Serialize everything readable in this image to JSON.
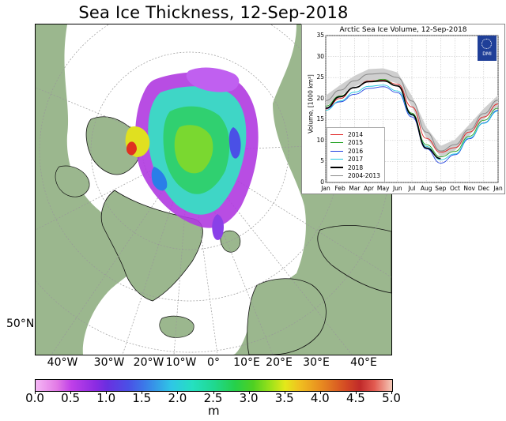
{
  "map": {
    "title": "Sea Ice Thickness, 12-Sep-2018",
    "latitude_label": "50°N",
    "longitude_labels": [
      "40°W",
      "30°W",
      "20°W",
      "10°W",
      "0°",
      "10°E",
      "20°E",
      "30°E",
      "40°E"
    ],
    "colors": {
      "land": "#9bb78e",
      "ocean": "#ffffff",
      "graticule": "#999999"
    }
  },
  "colorbar": {
    "ticks": [
      "0.0",
      "0.5",
      "1.0",
      "1.5",
      "2.0",
      "2.5",
      "3.0",
      "3.5",
      "4.0",
      "4.5",
      "5.0"
    ],
    "unit": "m",
    "range": [
      0.0,
      5.0
    ]
  },
  "inset": {
    "title": "Arctic Sea Ice Volume, 12-Sep-2018",
    "logo_text": "DMI",
    "icon": "dmi-logo-icon"
  },
  "chart_data": {
    "type": "line",
    "title": "Arctic Sea Ice Volume, 12-Sep-2018",
    "xlabel": "",
    "ylabel": "Volume, [1000 km³]",
    "x_ticks": [
      "Jan",
      "Feb",
      "Mar",
      "Apr",
      "May",
      "Jun",
      "Jul",
      "Aug",
      "Sep",
      "Oct",
      "Nov",
      "Dec",
      "Jan"
    ],
    "y_ticks": [
      "0",
      "5",
      "10",
      "15",
      "20",
      "25",
      "30",
      "35"
    ],
    "ylim": [
      0,
      35
    ],
    "legend_position": "lower-left",
    "series": [
      {
        "name": "2014",
        "color": "#e02020",
        "values": [
          17.5,
          20.0,
          22.6,
          24.2,
          24.4,
          23.4,
          18.0,
          10.5,
          7.2,
          8.3,
          12.0,
          15.6,
          18.7
        ]
      },
      {
        "name": "2015",
        "color": "#20a020",
        "values": [
          18.2,
          20.6,
          22.6,
          24.0,
          24.6,
          23.0,
          16.5,
          9.0,
          6.1,
          7.4,
          11.0,
          14.8,
          17.7
        ]
      },
      {
        "name": "2016",
        "color": "#2040e0",
        "values": [
          17.6,
          19.2,
          21.0,
          22.4,
          22.8,
          21.4,
          15.6,
          8.0,
          4.6,
          6.6,
          10.4,
          14.2,
          17.2
        ]
      },
      {
        "name": "2017",
        "color": "#20c8e0",
        "values": [
          17.2,
          19.4,
          21.5,
          22.9,
          23.2,
          21.8,
          16.0,
          8.6,
          5.4,
          6.8,
          10.6,
          14.1,
          17.0
        ]
      },
      {
        "name": "2018",
        "color": "#000000",
        "values": [
          17.7,
          20.4,
          22.6,
          24.0,
          24.2,
          23.0,
          16.2,
          8.2,
          5.7
        ]
      },
      {
        "name": "2004-2013",
        "color": "#888888",
        "values": [
          19.5,
          22.0,
          24.2,
          25.8,
          26.0,
          25.0,
          19.4,
          12.0,
          7.5,
          9.0,
          12.6,
          16.4,
          19.6
        ]
      }
    ]
  }
}
